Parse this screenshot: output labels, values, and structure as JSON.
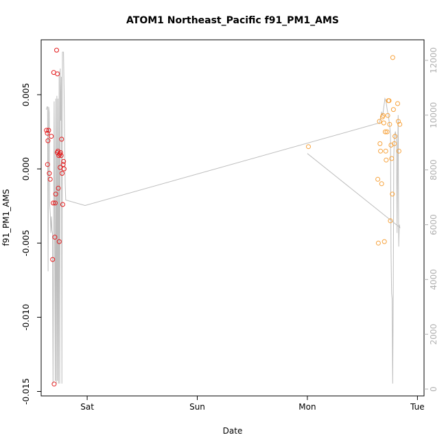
{
  "chart_data": {
    "type": "scatter",
    "title": "ATOM1 Northeast_Pacific f91_PM1_AMS",
    "xlabel": "Date",
    "ylabel": "f91_PM1_AMS",
    "xlim": [
      -0.418,
      3.06
    ],
    "ylim": [
      -0.0153,
      0.0087
    ],
    "x_ticks": [
      {
        "value": 0,
        "label": "Sat"
      },
      {
        "value": 1,
        "label": "Sun"
      },
      {
        "value": 2,
        "label": "Mon"
      },
      {
        "value": 3,
        "label": "Tue"
      }
    ],
    "y_ticks": [
      {
        "value": 0.005,
        "label": "0.005"
      },
      {
        "value": 0.0,
        "label": "0.000"
      },
      {
        "value": -0.005,
        "label": "-0.005"
      },
      {
        "value": -0.01,
        "label": "-0.010"
      },
      {
        "value": -0.015,
        "label": "-0.015"
      }
    ],
    "y2lim": [
      -250,
      12750
    ],
    "y2_ticks": [
      {
        "value": 0,
        "label": "0"
      },
      {
        "value": 2000,
        "label": "2000"
      },
      {
        "value": 4000,
        "label": "4000"
      },
      {
        "value": 6000,
        "label": "6000"
      },
      {
        "value": 8000,
        "label": "8000"
      },
      {
        "value": 10000,
        "label": "10000"
      },
      {
        "value": 12000,
        "label": "12000"
      }
    ],
    "grid": false,
    "colors": {
      "series_a": "#e41a1c",
      "series_b": "#f7a23b",
      "line": "#bdbdbd",
      "axis2": "#b0b0b0"
    },
    "series": [
      {
        "color": "#e41a1c",
        "points": [
          {
            "x": -0.37,
            "y": 0.0026
          },
          {
            "x": -0.362,
            "y": 0.0024
          },
          {
            "x": -0.356,
            "y": 0.0019
          },
          {
            "x": -0.35,
            "y": 0.0026
          },
          {
            "x": -0.36,
            "y": 0.0003
          },
          {
            "x": -0.344,
            "y": -0.0003
          },
          {
            "x": -0.336,
            "y": -0.0007
          },
          {
            "x": -0.326,
            "y": 0.0022
          },
          {
            "x": -0.314,
            "y": -0.0061
          },
          {
            "x": -0.308,
            "y": -0.0023
          },
          {
            "x": -0.304,
            "y": 0.0065
          },
          {
            "x": -0.3,
            "y": -0.0145
          },
          {
            "x": -0.294,
            "y": -0.0046
          },
          {
            "x": -0.29,
            "y": -0.0023
          },
          {
            "x": -0.286,
            "y": -0.0017
          },
          {
            "x": -0.278,
            "y": 0.008
          },
          {
            "x": -0.272,
            "y": 0.0011
          },
          {
            "x": -0.27,
            "y": 0.0064
          },
          {
            "x": -0.266,
            "y": 0.0012
          },
          {
            "x": -0.262,
            "y": -0.0013
          },
          {
            "x": -0.258,
            "y": 0.0009
          },
          {
            "x": -0.254,
            "y": -0.0049
          },
          {
            "x": -0.25,
            "y": 0.001
          },
          {
            "x": -0.246,
            "y": 0.0001
          },
          {
            "x": -0.242,
            "y": 0.0011
          },
          {
            "x": -0.236,
            "y": 0.0009
          },
          {
            "x": -0.232,
            "y": 0.002
          },
          {
            "x": -0.228,
            "y": -0.0003
          },
          {
            "x": -0.222,
            "y": -0.0024
          },
          {
            "x": -0.218,
            "y": 0.0003
          },
          {
            "x": -0.214,
            "y": 0.0005
          },
          {
            "x": -0.21,
            "y": 0.0
          }
        ]
      },
      {
        "color": "#f7a23b",
        "points": [
          {
            "x": 2.01,
            "y": 0.0015
          },
          {
            "x": 2.64,
            "y": -0.0007
          },
          {
            "x": 2.645,
            "y": -0.005
          },
          {
            "x": 2.655,
            "y": 0.0032
          },
          {
            "x": 2.66,
            "y": 0.0017
          },
          {
            "x": 2.665,
            "y": 0.0012
          },
          {
            "x": 2.675,
            "y": -0.001
          },
          {
            "x": 2.682,
            "y": 0.0035
          },
          {
            "x": 2.688,
            "y": 0.0036
          },
          {
            "x": 2.694,
            "y": 0.0031
          },
          {
            "x": 2.7,
            "y": -0.0049
          },
          {
            "x": 2.708,
            "y": 0.0025
          },
          {
            "x": 2.712,
            "y": 0.0012
          },
          {
            "x": 2.716,
            "y": 0.0006
          },
          {
            "x": 2.724,
            "y": 0.0025
          },
          {
            "x": 2.73,
            "y": 0.0036
          },
          {
            "x": 2.736,
            "y": 0.0046
          },
          {
            "x": 2.742,
            "y": 0.0046
          },
          {
            "x": 2.748,
            "y": 0.003
          },
          {
            "x": 2.754,
            "y": -0.0035
          },
          {
            "x": 2.76,
            "y": 0.0016
          },
          {
            "x": 2.766,
            "y": 0.0007
          },
          {
            "x": 2.772,
            "y": -0.0017
          },
          {
            "x": 2.776,
            "y": 0.0075
          },
          {
            "x": 2.782,
            "y": 0.004
          },
          {
            "x": 2.79,
            "y": 0.0017
          },
          {
            "x": 2.796,
            "y": 0.0022
          },
          {
            "x": 2.82,
            "y": 0.0044
          },
          {
            "x": 2.826,
            "y": 0.0032
          },
          {
            "x": 2.832,
            "y": 0.0012
          },
          {
            "x": 2.84,
            "y": 0.003
          }
        ]
      }
    ],
    "line_axis": "right",
    "line": [
      {
        "x": -0.37,
        "y": 10200
      },
      {
        "x": -0.365,
        "y": 10300
      },
      {
        "x": -0.36,
        "y": 10300
      },
      {
        "x": -0.355,
        "y": 4300
      },
      {
        "x": -0.35,
        "y": 10300
      },
      {
        "x": -0.345,
        "y": 10100
      },
      {
        "x": -0.34,
        "y": 6700
      },
      {
        "x": -0.335,
        "y": 6400
      },
      {
        "x": -0.33,
        "y": 5700
      },
      {
        "x": -0.325,
        "y": 6300
      },
      {
        "x": -0.32,
        "y": 5800
      },
      {
        "x": -0.315,
        "y": 5700
      },
      {
        "x": -0.31,
        "y": 200
      },
      {
        "x": -0.305,
        "y": 5900
      },
      {
        "x": -0.3,
        "y": 10500
      },
      {
        "x": -0.295,
        "y": 5600
      },
      {
        "x": -0.29,
        "y": 300
      },
      {
        "x": -0.285,
        "y": 10600
      },
      {
        "x": -0.28,
        "y": 200
      },
      {
        "x": -0.275,
        "y": 10700
      },
      {
        "x": -0.27,
        "y": 300
      },
      {
        "x": -0.265,
        "y": 10600
      },
      {
        "x": -0.26,
        "y": 200
      },
      {
        "x": -0.255,
        "y": 11600
      },
      {
        "x": -0.25,
        "y": 200
      },
      {
        "x": -0.245,
        "y": 11700
      },
      {
        "x": -0.24,
        "y": 9800
      },
      {
        "x": -0.235,
        "y": 11400
      },
      {
        "x": -0.23,
        "y": 200
      },
      {
        "x": -0.225,
        "y": 12300
      },
      {
        "x": -0.22,
        "y": 12300
      },
      {
        "x": -0.215,
        "y": 12300
      },
      {
        "x": -0.21,
        "y": 10900
      },
      {
        "x": -0.205,
        "y": 8900
      },
      {
        "x": -0.2,
        "y": 7500
      },
      {
        "x": -0.195,
        "y": 6900
      },
      {
        "x": -0.02,
        "y": 6700
      },
      {
        "x": 2.64,
        "y": 9700
      },
      {
        "x": 2.655,
        "y": 9700
      },
      {
        "x": 2.665,
        "y": 9900
      },
      {
        "x": 2.675,
        "y": 10100
      },
      {
        "x": 2.685,
        "y": 10000
      },
      {
        "x": 2.695,
        "y": 10300
      },
      {
        "x": 2.705,
        "y": 10600
      },
      {
        "x": 2.715,
        "y": 10500
      },
      {
        "x": 2.725,
        "y": 10200
      },
      {
        "x": 2.735,
        "y": 10000
      },
      {
        "x": 2.745,
        "y": 9700
      },
      {
        "x": 2.755,
        "y": 9300
      },
      {
        "x": 2.76,
        "y": 5000
      },
      {
        "x": 2.765,
        "y": 3500
      },
      {
        "x": 2.77,
        "y": 3300
      },
      {
        "x": 2.775,
        "y": 200
      },
      {
        "x": 2.78,
        "y": 3300
      },
      {
        "x": 2.785,
        "y": 8500
      },
      {
        "x": 2.79,
        "y": 9200
      },
      {
        "x": 2.8,
        "y": 9400
      },
      {
        "x": 2.81,
        "y": 9000
      },
      {
        "x": 2.815,
        "y": 5700
      },
      {
        "x": 2.82,
        "y": 8600
      },
      {
        "x": 2.825,
        "y": 10000
      },
      {
        "x": 2.83,
        "y": 5200
      },
      {
        "x": 2.835,
        "y": 6000
      },
      {
        "x": 2.84,
        "y": 5900
      },
      {
        "x": 2.0,
        "y": 8600
      }
    ]
  }
}
